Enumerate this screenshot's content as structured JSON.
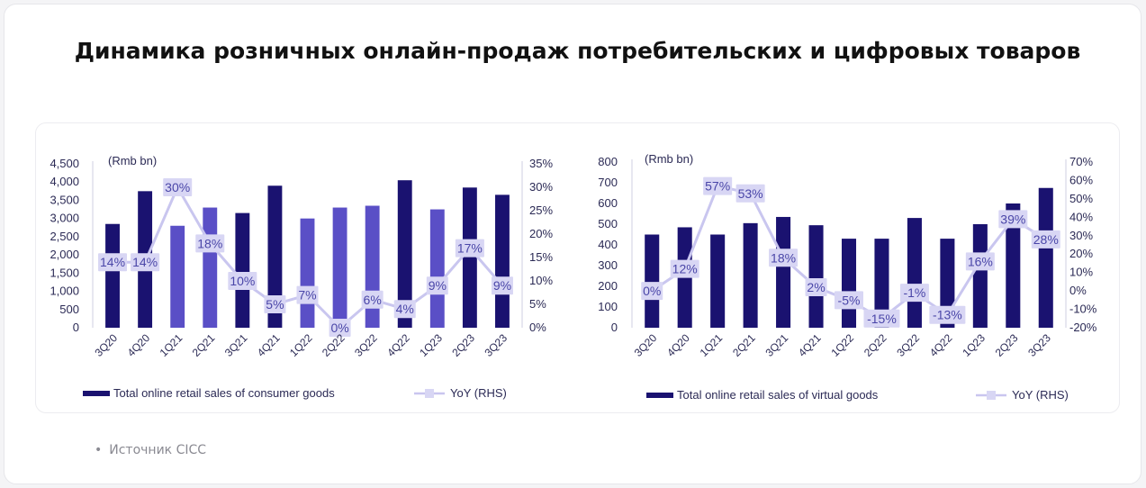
{
  "page": {
    "title": "Динамика розничных онлайн-продаж потребительских и цифровых товаров",
    "source_bullet": "•",
    "source": "Источник CICC"
  },
  "colors": {
    "bar_dark": "#1a1270",
    "bar_light": "#5a4fc6",
    "line": "#c9c6ef",
    "label_bg": "#d8d6f4",
    "label_text": "#4a46a8",
    "axis_text": "#2b2a55"
  },
  "chart_data": [
    {
      "type": "bar",
      "unit_label": "(Rmb bn)",
      "categories": [
        "3Q20",
        "4Q20",
        "1Q21",
        "2Q21",
        "3Q21",
        "4Q21",
        "1Q22",
        "2Q22",
        "3Q22",
        "4Q22",
        "1Q23",
        "2Q23",
        "3Q23"
      ],
      "series": [
        {
          "name": "Total online retail sales of consumer goods",
          "type": "bar",
          "axis": "left",
          "values": [
            2850,
            3750,
            2800,
            3300,
            3150,
            3900,
            3000,
            3300,
            3350,
            4050,
            3250,
            3850,
            3650
          ]
        },
        {
          "name": "YoY (RHS)",
          "type": "line",
          "axis": "right",
          "values": [
            14,
            14,
            30,
            18,
            10,
            5,
            7,
            0,
            6,
            4,
            9,
            17,
            9
          ],
          "labels": [
            "14%",
            "14%",
            "30%",
            "18%",
            "10%",
            "5%",
            "7%",
            "0%",
            "6%",
            "4%",
            "9%",
            "17%",
            "9%"
          ]
        }
      ],
      "ylim_left": [
        0,
        4500
      ],
      "yticks_left": [
        "0",
        "500",
        "1,000",
        "1,500",
        "2,000",
        "2,500",
        "3,000",
        "3,500",
        "4,000",
        "4,500"
      ],
      "ylim_right": [
        0,
        35
      ],
      "yticks_right": [
        "0%",
        "5%",
        "10%",
        "15%",
        "20%",
        "25%",
        "30%",
        "35%"
      ],
      "legend_placement": "bottom"
    },
    {
      "type": "bar",
      "unit_label": "(Rmb bn)",
      "categories": [
        "3Q20",
        "4Q20",
        "1Q21",
        "2Q21",
        "3Q21",
        "4Q21",
        "1Q22",
        "2Q22",
        "3Q22",
        "4Q22",
        "1Q23",
        "2Q23",
        "3Q23"
      ],
      "series": [
        {
          "name": "Total online retail sales of virtual goods",
          "type": "bar",
          "axis": "left",
          "values": [
            450,
            485,
            450,
            505,
            535,
            495,
            430,
            430,
            530,
            430,
            500,
            600,
            675
          ]
        },
        {
          "name": "YoY (RHS)",
          "type": "line",
          "axis": "right",
          "values": [
            0,
            12,
            57,
            53,
            18,
            2,
            -5,
            -15,
            -1,
            -13,
            16,
            39,
            28
          ],
          "labels": [
            "0%",
            "12%",
            "57%",
            "53%",
            "18%",
            "2%",
            "-5%",
            "-15%",
            "-1%",
            "-13%",
            "16%",
            "39%",
            "28%"
          ]
        }
      ],
      "ylim_left": [
        0,
        800
      ],
      "yticks_left": [
        "0",
        "100",
        "200",
        "300",
        "400",
        "500",
        "600",
        "700",
        "800"
      ],
      "ylim_right": [
        -20,
        70
      ],
      "yticks_right": [
        "-20%",
        "-10%",
        "0%",
        "10%",
        "20%",
        "30%",
        "40%",
        "50%",
        "60%",
        "70%"
      ],
      "legend_placement": "bottom"
    }
  ]
}
